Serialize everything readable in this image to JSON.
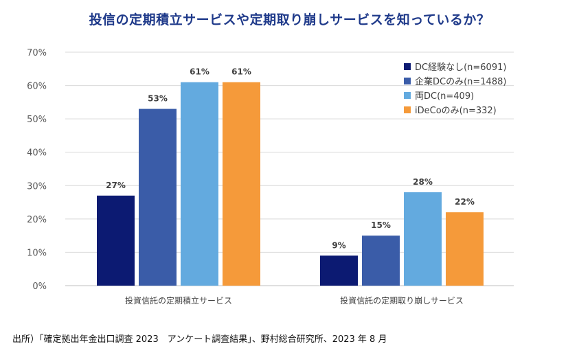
{
  "chart_data": {
    "type": "bar",
    "title": "投信の定期積立サービスや定期取り崩しサービスを知っているか？",
    "categories": [
      "投資信託の定期積立サービス",
      "投資信託の定期取り崩しサービス"
    ],
    "series": [
      {
        "name": "DC経験なし(n=6091)",
        "values": [
          27,
          9
        ],
        "labels": [
          "27%",
          "9%"
        ],
        "color": "#0c1a72"
      },
      {
        "name": "企業DCのみ(n=1488)",
        "values": [
          53,
          15
        ],
        "labels": [
          "53%",
          "15%"
        ],
        "color": "#3a5ca8"
      },
      {
        "name": "両DC(n=409)",
        "values": [
          61,
          28
        ],
        "labels": [
          "61%",
          "28%"
        ],
        "color": "#63aadf"
      },
      {
        "name": "iDeCoのみ(n=332)",
        "values": [
          61,
          22
        ],
        "labels": [
          "61%",
          "22%"
        ],
        "color": "#f59a3a"
      }
    ],
    "yticks": [
      "0%",
      "10%",
      "20%",
      "30%",
      "40%",
      "50%",
      "60%",
      "70%"
    ],
    "ylim": [
      0,
      70
    ],
    "grid": true,
    "legend": "top-right"
  },
  "source_note": "出所）「確定拠出年金出口調査 2023　アンケート調査結果」、野村総合研究所、2023 年 8 月"
}
